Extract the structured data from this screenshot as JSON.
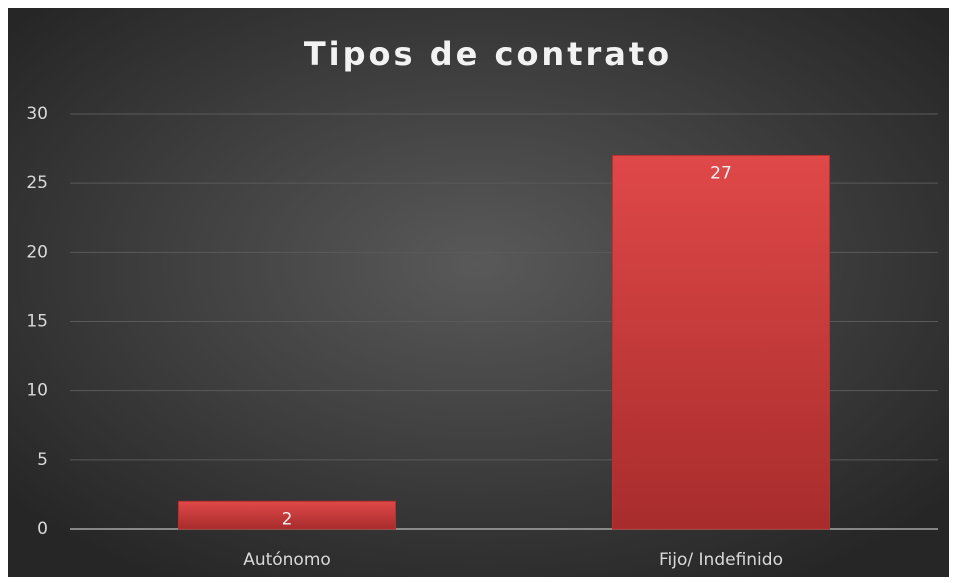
{
  "chart_data": {
    "type": "bar",
    "title": "Tipos de contrato",
    "categories": [
      "Autónomo",
      "Fijo/ Indefinido"
    ],
    "values": [
      2,
      27
    ],
    "color": "#d94040",
    "ylim": [
      0,
      30
    ],
    "yticks": [
      0,
      5,
      10,
      15,
      20,
      25,
      30
    ],
    "grid": true
  }
}
